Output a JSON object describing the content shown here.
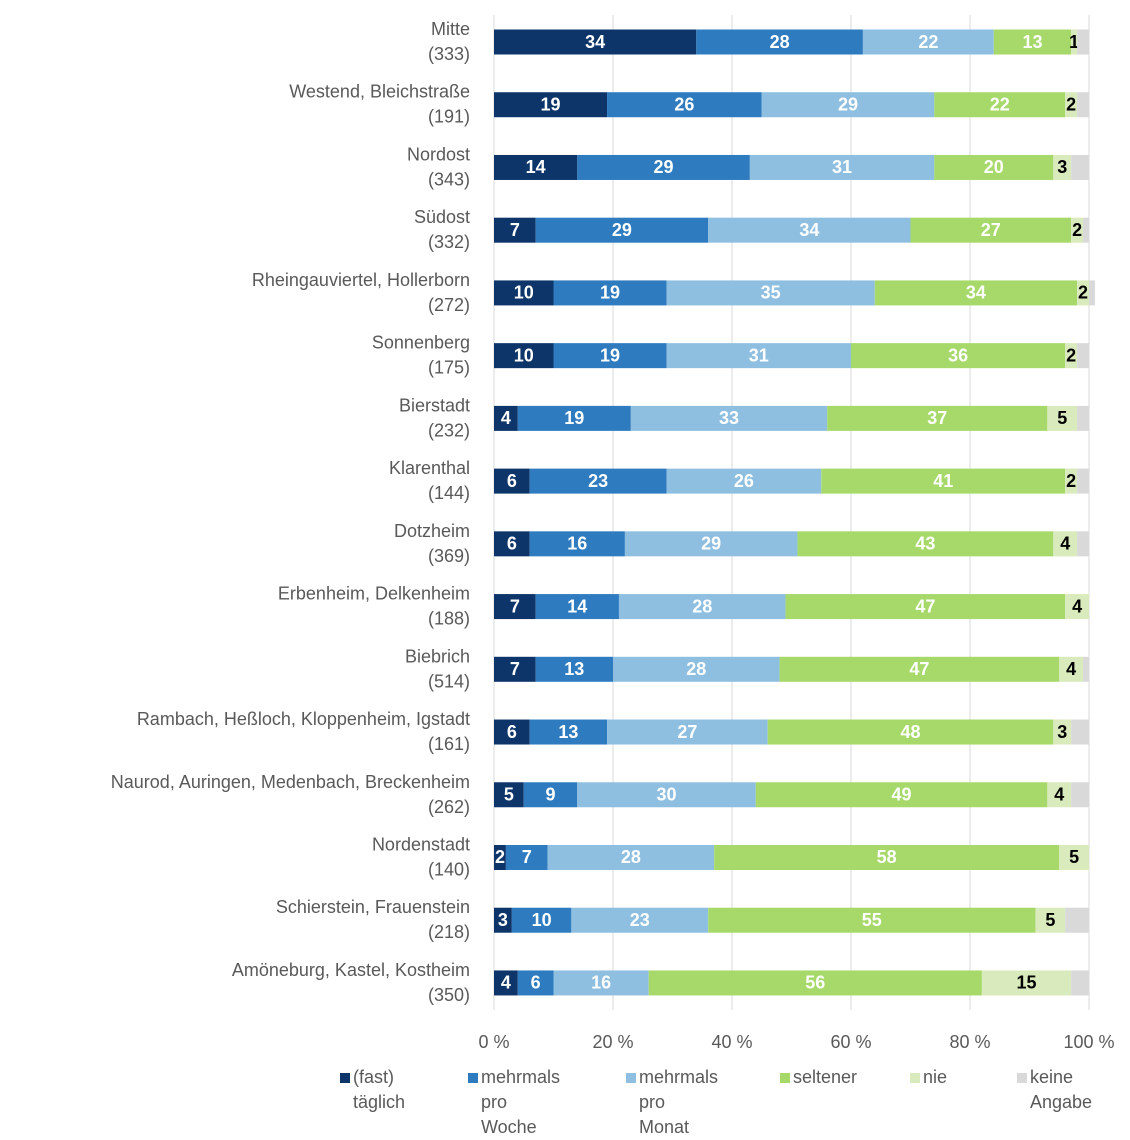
{
  "chart_data": {
    "type": "stacked-barh",
    "categories": [
      "Mitte\n(333)",
      "Westend, Bleichstraße\n(191)",
      "Nordost\n(343)",
      "Südost\n(332)",
      "Rheingauviertel, Hollerborn\n(272)",
      "Sonnenberg\n(175)",
      "Bierstadt\n(232)",
      "Klarenthal\n(144)",
      "Dotzheim\n(369)",
      "Erbenheim, Delkenheim\n(188)",
      "Biebrich\n(514)",
      "Rambach, Heßloch, Kloppenheim, Igstadt\n(161)",
      "Naurod, Auringen, Medenbach, Breckenheim\n(262)",
      "Nordenstadt\n(140)",
      "Schierstein, Frauenstein\n(218)",
      "Amöneburg, Kastel, Kostheim\n(350)"
    ],
    "series": [
      {
        "name": "(fast)\ntäglich",
        "color": "#0e3569",
        "label_color": "#ffffff",
        "values": [
          34,
          19,
          14,
          7,
          10,
          10,
          4,
          6,
          6,
          7,
          7,
          6,
          5,
          2,
          3,
          4
        ]
      },
      {
        "name": "mehrmals\npro\nWoche",
        "color": "#2e7bbf",
        "label_color": "#ffffff",
        "values": [
          28,
          26,
          29,
          29,
          19,
          19,
          19,
          23,
          16,
          14,
          13,
          13,
          9,
          7,
          10,
          6
        ]
      },
      {
        "name": "mehrmals\npro\nMonat",
        "color": "#8fbfe0",
        "label_color": "#ffffff",
        "values": [
          22,
          29,
          31,
          34,
          35,
          31,
          33,
          26,
          29,
          28,
          28,
          27,
          30,
          28,
          23,
          16
        ]
      },
      {
        "name": "seltener",
        "color": "#a6d96a",
        "label_color": "#ffffff",
        "values": [
          13,
          22,
          20,
          27,
          34,
          36,
          37,
          41,
          43,
          47,
          47,
          48,
          49,
          58,
          55,
          56
        ]
      },
      {
        "name": "nie",
        "color": "#d9eabc",
        "label_color": "#000000",
        "values": [
          1,
          2,
          3,
          2,
          2,
          2,
          5,
          2,
          4,
          4,
          4,
          3,
          4,
          5,
          5,
          15
        ]
      },
      {
        "name": "keine\nAngabe",
        "color": "#d9d9d9",
        "values": [
          2,
          2,
          3,
          1,
          1,
          2,
          2,
          2,
          2,
          0,
          1,
          3,
          3,
          0,
          4,
          3
        ]
      }
    ],
    "xlim": [
      0,
      100
    ],
    "xticks": [
      {
        "value": 0,
        "label": "0 %"
      },
      {
        "value": 20,
        "label": "20 %"
      },
      {
        "value": 40,
        "label": "40 %"
      },
      {
        "value": 60,
        "label": "60 %"
      },
      {
        "value": 80,
        "label": "80 %"
      },
      {
        "value": 100,
        "label": "100 %"
      }
    ],
    "grid": true
  }
}
